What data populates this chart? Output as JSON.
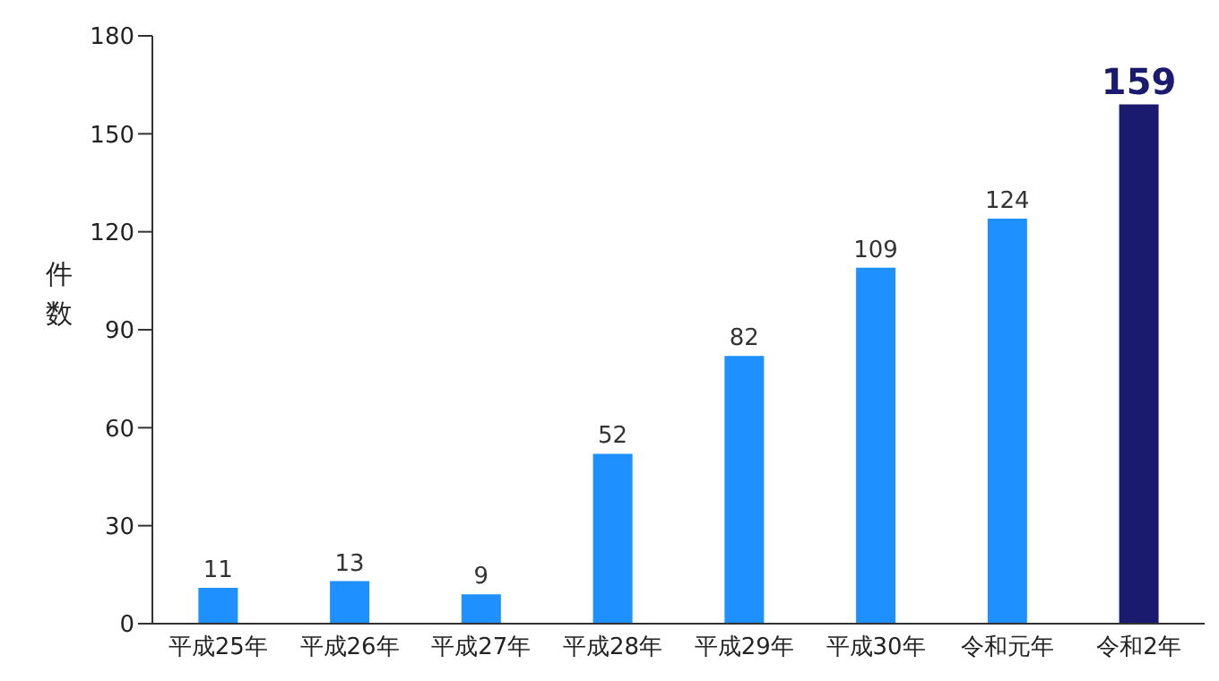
{
  "chart_data": {
    "type": "bar",
    "ylabel": "件数",
    "categories": [
      "平成25年",
      "平成26年",
      "平成27年",
      "平成28年",
      "平成29年",
      "平成30年",
      "令和元年",
      "令和2年"
    ],
    "values": [
      11,
      13,
      9,
      52,
      82,
      109,
      124,
      159
    ],
    "colors": [
      "#1e90ff",
      "#1e90ff",
      "#1e90ff",
      "#1e90ff",
      "#1e90ff",
      "#1e90ff",
      "#1e90ff",
      "#1a1a6e"
    ],
    "ylim": [
      0,
      180
    ],
    "yticks": [
      0,
      30,
      60,
      90,
      120,
      150,
      180
    ],
    "grid": false,
    "data_labels": true
  }
}
